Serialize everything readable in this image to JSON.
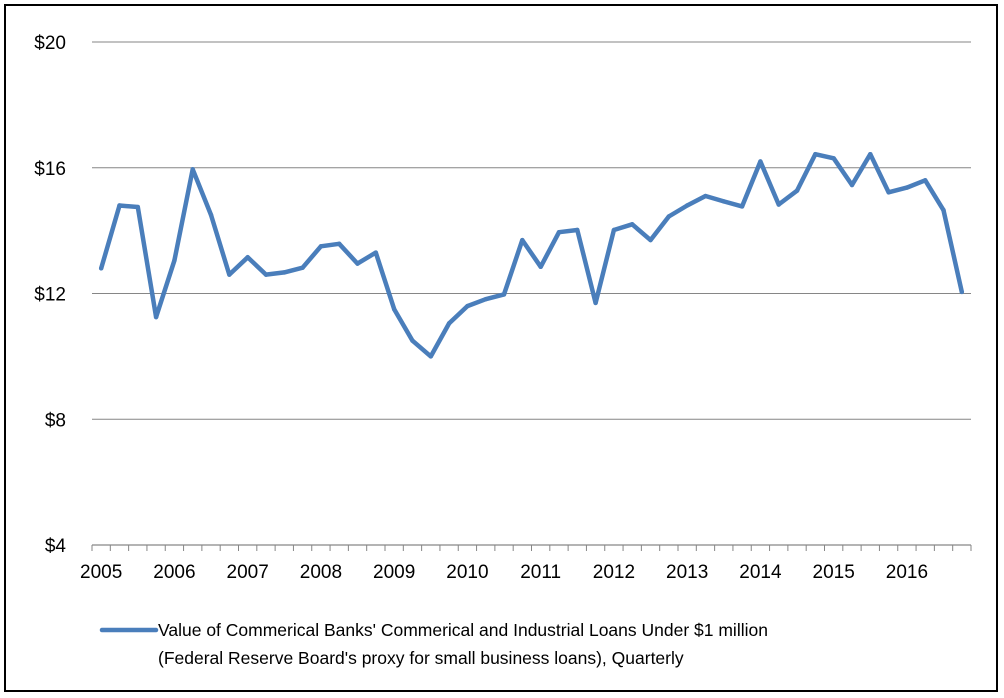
{
  "chart_data": {
    "type": "line",
    "title": "",
    "xlabel": "",
    "ylabel": "",
    "ylim": [
      4,
      20
    ],
    "y_ticks": [
      "$4",
      "$8",
      "$12",
      "$16",
      "$20"
    ],
    "y_tick_values": [
      4,
      8,
      12,
      16,
      20
    ],
    "x_tick_labels": [
      "2005",
      "2006",
      "2007",
      "2008",
      "2009",
      "2010",
      "2011",
      "2012",
      "2013",
      "2014",
      "2015",
      "2016"
    ],
    "grid": "horizontal",
    "legend_position": "bottom",
    "series_color": "#4a7ebb",
    "series": [
      {
        "name": "Value of Commerical Banks' Commerical and Industrial Loans Under $1 million (Federal Reserve Board's proxy for small business loans), Quarterly",
        "legend_lines": [
          "Value of Commerical Banks' Commerical and Industrial Loans Under $1 million",
          "(Federal Reserve Board's proxy for small business loans), Quarterly"
        ],
        "x": [
          "2005 Q1",
          "2005 Q2",
          "2005 Q3",
          "2005 Q4",
          "2006 Q1",
          "2006 Q2",
          "2006 Q3",
          "2006 Q4",
          "2007 Q1",
          "2007 Q2",
          "2007 Q3",
          "2007 Q4",
          "2008 Q1",
          "2008 Q2",
          "2008 Q3",
          "2008 Q4",
          "2009 Q1",
          "2009 Q2",
          "2009 Q3",
          "2009 Q4",
          "2010 Q1",
          "2010 Q2",
          "2010 Q3",
          "2010 Q4",
          "2011 Q1",
          "2011 Q2",
          "2011 Q3",
          "2011 Q4",
          "2012 Q1",
          "2012 Q2",
          "2012 Q3",
          "2012 Q4",
          "2013 Q1",
          "2013 Q2",
          "2013 Q3",
          "2013 Q4",
          "2014 Q1",
          "2014 Q2",
          "2014 Q3",
          "2014 Q4",
          "2015 Q1",
          "2015 Q2",
          "2015 Q3",
          "2015 Q4",
          "2016 Q1",
          "2016 Q2",
          "2016 Q3",
          "2016 Q4"
        ],
        "values": [
          12.8,
          14.8,
          14.75,
          11.25,
          13.05,
          15.95,
          14.5,
          12.6,
          13.15,
          12.6,
          12.67,
          12.82,
          13.5,
          13.58,
          12.95,
          13.3,
          11.5,
          10.5,
          10.0,
          11.05,
          11.6,
          11.82,
          11.97,
          13.7,
          12.85,
          13.95,
          14.02,
          11.7,
          14.02,
          14.2,
          13.7,
          14.45,
          14.8,
          15.1,
          14.93,
          14.77,
          16.2,
          14.83,
          15.27,
          16.43,
          16.3,
          15.45,
          16.43,
          15.22,
          15.37,
          15.6,
          14.65,
          12.05
        ]
      }
    ]
  }
}
